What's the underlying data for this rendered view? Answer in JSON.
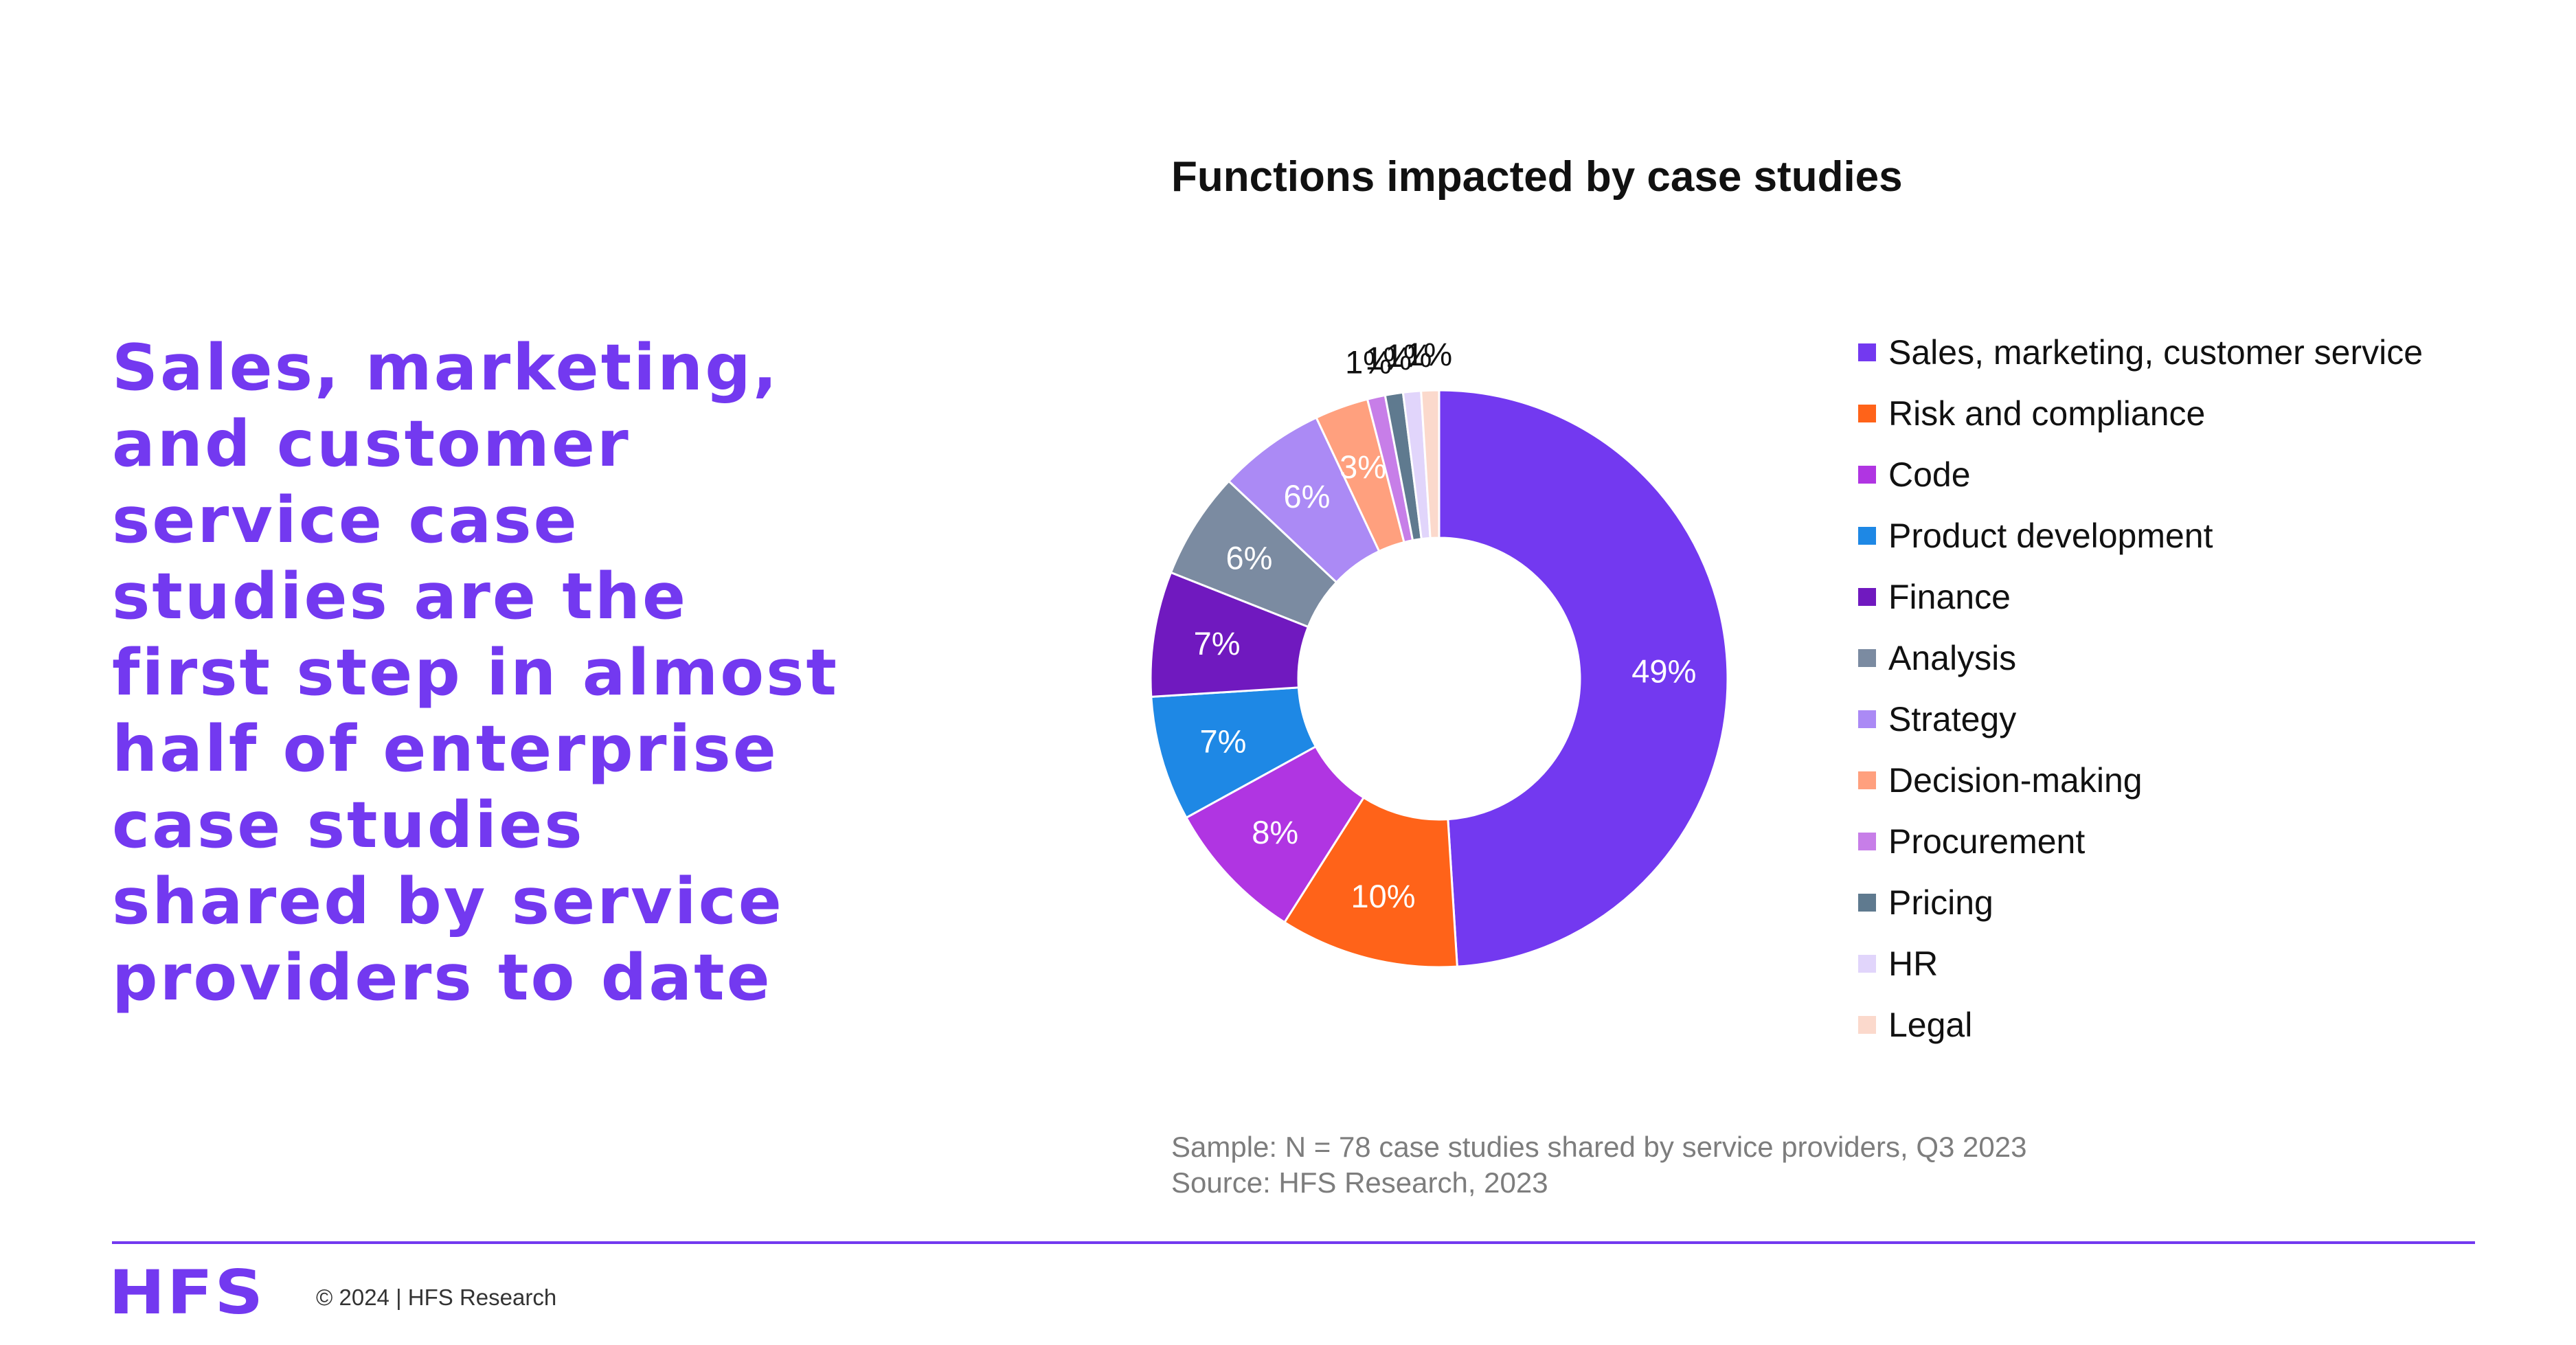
{
  "headline": "Sales, marketing,\nand customer\nservice case\nstudies are the\nfirst step in almost\nhalf of enterprise\ncase studies\nshared by service\nproviders to date",
  "chart_data": {
    "type": "pie",
    "title": "Functions impacted by case studies",
    "donut": true,
    "legend_position": "right",
    "categories": [
      "Sales, marketing, customer service",
      "Risk and compliance",
      "Code",
      "Product development",
      "Finance",
      "Analysis",
      "Strategy",
      "Decision-making",
      "Procurement",
      "Pricing",
      "HR",
      "Legal"
    ],
    "values": [
      49,
      10,
      8,
      7,
      7,
      6,
      6,
      3,
      1,
      1,
      1,
      1
    ],
    "labels": [
      "49%",
      "10%",
      "8%",
      "7%",
      "7%",
      "6%",
      "6%",
      "3%",
      "1%",
      "1%",
      "1%",
      "1%"
    ],
    "colors": [
      "#7339f0",
      "#ff6319",
      "#b035e2",
      "#1e88e5",
      "#7019bf",
      "#7b8ba1",
      "#ab8af5",
      "#ffa07e",
      "#c77ee8",
      "#5f7a8f",
      "#e1d5fb",
      "#fbd9cc"
    ]
  },
  "notes": {
    "sample": "Sample: N = 78 case studies shared by service providers, Q3 2023",
    "source": "Source: HFS Research, 2023"
  },
  "footer": {
    "logo_text": "HFS",
    "copyright": "© 2024 | HFS Research"
  }
}
